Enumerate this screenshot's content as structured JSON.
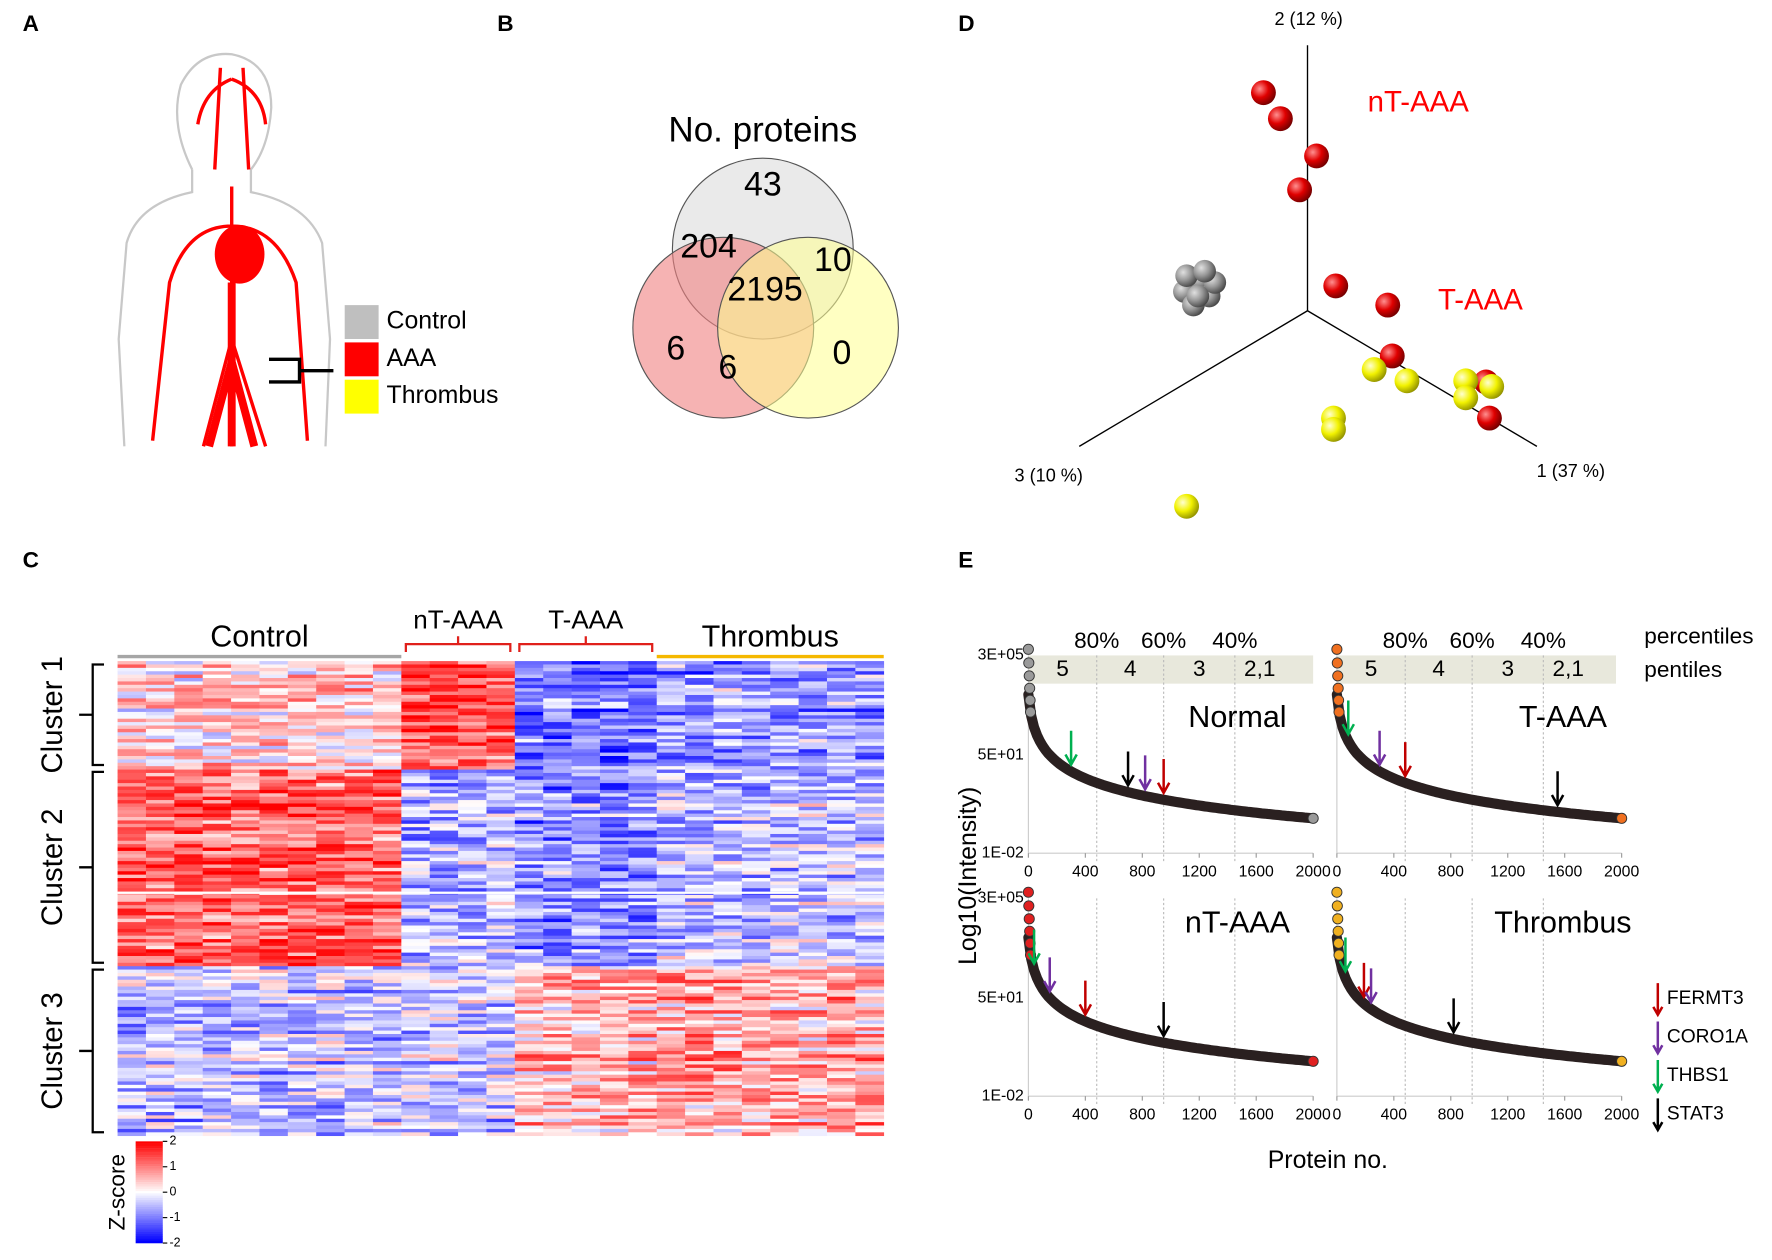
{
  "panel_labels": [
    "A",
    "B",
    "C",
    "D",
    "E"
  ],
  "A": {
    "legend": [
      {
        "name": "Control",
        "color": "#bfbfbf"
      },
      {
        "name": "AAA",
        "color": "#ff0000"
      },
      {
        "name": "Thrombus",
        "color": "#ffff00"
      }
    ]
  },
  "B": {
    "title": "No. proteins",
    "counts": [
      43,
      204,
      10,
      2195,
      6,
      6,
      0
    ]
  },
  "C": {
    "groups": [
      {
        "name": "Control",
        "color": "#a6a6a6"
      },
      {
        "name": "nT-AAA",
        "color": "#e0201b"
      },
      {
        "name": "T-AAA",
        "color": "#e0201b"
      },
      {
        "name": "Thrombus",
        "color": "#f5b800"
      }
    ],
    "clusters": [
      "Cluster 1",
      "Cluster 2",
      "Cluster 3"
    ],
    "colorbar": {
      "title": "Z-score",
      "ticks": [
        2,
        1,
        0,
        -1,
        -2
      ]
    }
  },
  "D": {
    "axes": [
      "2 (12 %)",
      "3 (10 %)",
      "1 (37 %)"
    ],
    "annotations": [
      {
        "text": "nT-AAA",
        "color": "#ff0000"
      },
      {
        "text": "T-AAA",
        "color": "#ff0000"
      }
    ]
  },
  "E": {
    "ylabel": "Log10(Intensity)",
    "xlabel": "Protein no.",
    "xlim": [
      0,
      2000
    ],
    "xticks": [
      0,
      400,
      800,
      1200,
      1600,
      2000
    ],
    "ylim": [
      0.01,
      300000
    ],
    "log_y": true,
    "yticks": [
      {
        "value": 300000,
        "label": "3E+05"
      },
      {
        "value": 50,
        "label": "5E+01"
      },
      {
        "value": 0.01,
        "label": "1E-02"
      }
    ],
    "percentiles": {
      "label": "percentiles",
      "values": [
        "80%",
        "60%",
        "40%"
      ]
    },
    "pentiles": {
      "label": "pentiles",
      "values": [
        "5",
        "4",
        "3",
        "2,1"
      ]
    },
    "pentile_bounds": [
      480,
      950,
      1450
    ],
    "proteins": [
      {
        "name": "FERMT3",
        "color": "#c00000"
      },
      {
        "name": "CORO1A",
        "color": "#7030a0"
      },
      {
        "name": "THBS1",
        "color": "#00b050"
      },
      {
        "name": "STAT3",
        "color": "#000000"
      }
    ],
    "subplots": [
      {
        "title": "Normal",
        "point_color": "#9a9a9a",
        "arrows": [
          950,
          820,
          300,
          700
        ]
      },
      {
        "title": "T-AAA",
        "point_color": "#f07020",
        "arrows": [
          480,
          300,
          80,
          1550
        ]
      },
      {
        "title": "nT-AAA",
        "point_color": "#e02020",
        "arrows": [
          400,
          150,
          40,
          950
        ]
      },
      {
        "title": "Thrombus",
        "point_color": "#f0b020",
        "arrows": [
          190,
          240,
          60,
          820
        ]
      }
    ]
  }
}
